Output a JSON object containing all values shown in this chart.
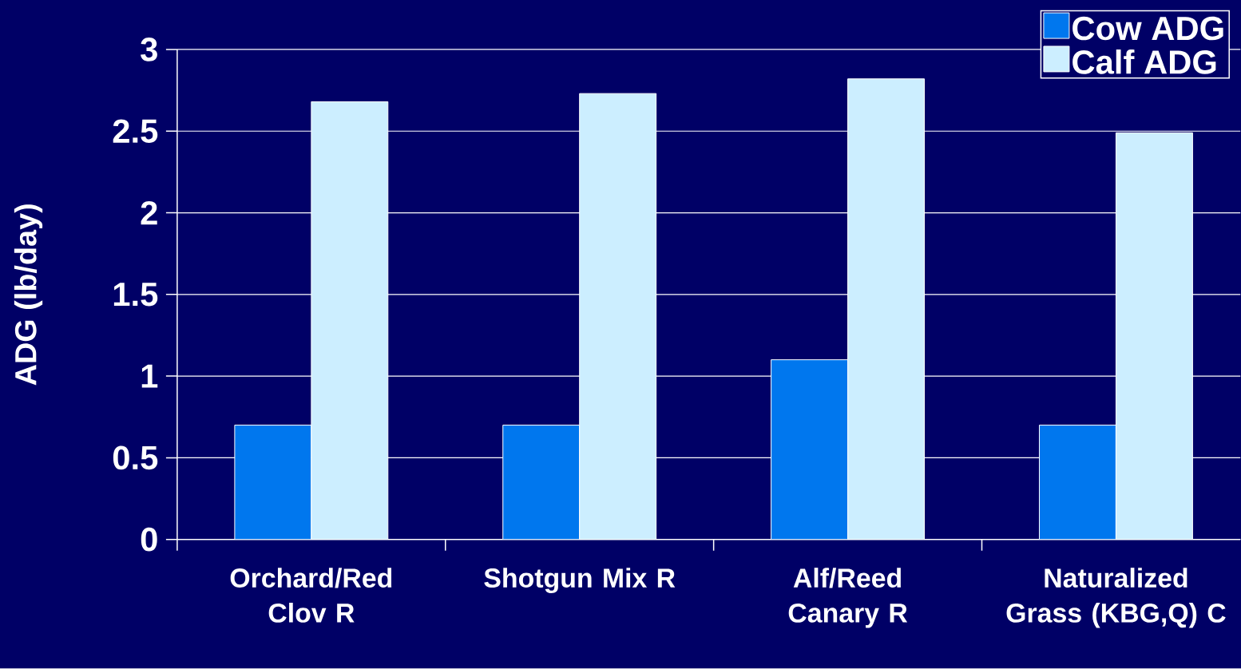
{
  "chart_data": {
    "type": "bar",
    "ylabel": "ADG (lb/day)",
    "categories": [
      "Orchard/Red Clov R",
      "Shotgun Mix R",
      "Alf/Reed Canary R",
      "Naturalized Grass (KBG,Q) C"
    ],
    "series": [
      {
        "name": "Cow ADG",
        "color": "#0077ee",
        "values": [
          0.7,
          0.7,
          1.1,
          0.7
        ]
      },
      {
        "name": "Calf ADG",
        "color": "#cceeff",
        "values": [
          2.68,
          2.73,
          2.82,
          2.49
        ]
      }
    ],
    "ylim": [
      0,
      3
    ],
    "yticks": [
      0,
      0.5,
      1,
      1.5,
      2,
      2.5,
      3
    ],
    "grid": "y",
    "legend": "top right"
  }
}
